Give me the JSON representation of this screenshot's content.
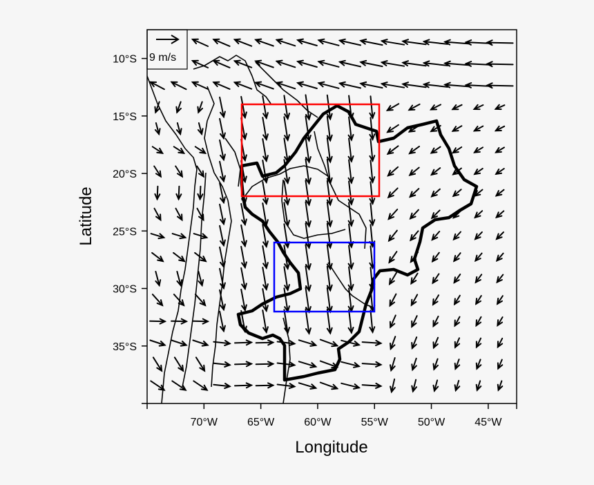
{
  "figure": {
    "xlabel": "Longitude",
    "ylabel": "Latitude",
    "x_ticks": [
      {
        "value": -70,
        "label": "70°W"
      },
      {
        "value": -65,
        "label": "65°W"
      },
      {
        "value": -60,
        "label": "60°W"
      },
      {
        "value": -55,
        "label": "55°W"
      },
      {
        "value": -50,
        "label": "50°W"
      },
      {
        "value": -45,
        "label": "45°W"
      }
    ],
    "y_ticks": [
      {
        "value": -10,
        "label": "10°S"
      },
      {
        "value": -15,
        "label": "15°S"
      },
      {
        "value": -20,
        "label": "20°S"
      },
      {
        "value": -25,
        "label": "25°S"
      },
      {
        "value": -30,
        "label": "30°S"
      },
      {
        "value": -35,
        "label": "35°S"
      }
    ],
    "extent": {
      "lon_min": -75,
      "lon_max": -42.5,
      "lat_min": -40,
      "lat_max": -7.5
    },
    "reference_vector": {
      "label": "9 m/s",
      "speed": 9
    },
    "boxes": [
      {
        "name": "northern-box",
        "color": "#ff0000",
        "lon": [
          -66,
          -53
        ],
        "lat": [
          -22,
          -14
        ]
      },
      {
        "name": "southern-box",
        "color": "#0000ff",
        "lon": [
          -63,
          -53.5
        ],
        "lat": [
          -32,
          -26
        ]
      }
    ],
    "colors": {
      "background": "#f6f6f6",
      "plot": "#f6f6f6",
      "lines": "#000000"
    }
  }
}
